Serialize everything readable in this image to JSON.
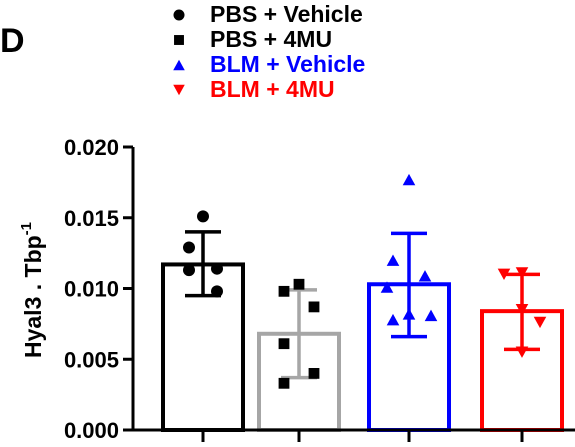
{
  "panel_label": "D",
  "chart_data": {
    "type": "bar",
    "ylabel": "Hyal3 . Tbp",
    "ylabel_superscript": "-1",
    "ylim": [
      0,
      0.02
    ],
    "yticks": [
      "0.000",
      "0.005",
      "0.010",
      "0.015",
      "0.020"
    ],
    "ytick_values": [
      0,
      0.005,
      0.01,
      0.015,
      0.02
    ],
    "legend_position": "top-left",
    "series": [
      {
        "name": "PBS + Vehicle",
        "marker": "circle",
        "color": "#000000",
        "legend_text_color": "#000000",
        "mean": 0.0117,
        "sd_upper": 0.014,
        "sd_lower": 0.0095,
        "points": [
          0.0151,
          0.0129,
          0.0114,
          0.0113,
          0.0098
        ]
      },
      {
        "name": "PBS + 4MU",
        "marker": "square",
        "color": "#a6a6a6",
        "legend_text_color": "#000000",
        "mean": 0.0068,
        "sd_upper": 0.0099,
        "sd_lower": 0.0037,
        "points": [
          0.0103,
          0.0098,
          0.0087,
          0.0061,
          0.004,
          0.0033
        ]
      },
      {
        "name": "BLM + Vehicle",
        "marker": "triangle-up",
        "color": "#0000ff",
        "legend_text_color": "#0000ff",
        "mean": 0.0103,
        "sd_upper": 0.0139,
        "sd_lower": 0.0066,
        "points": [
          0.0177,
          0.012,
          0.0109,
          0.0101,
          0.0082,
          0.0081,
          0.0078
        ]
      },
      {
        "name": "BLM + 4MU",
        "marker": "triangle-down",
        "color": "#ff0000",
        "legend_text_color": "#ff0000",
        "mean": 0.0084,
        "sd_upper": 0.011,
        "sd_lower": 0.0057,
        "points": [
          0.0111,
          0.011,
          0.0085,
          0.0076,
          0.0055
        ]
      }
    ]
  }
}
